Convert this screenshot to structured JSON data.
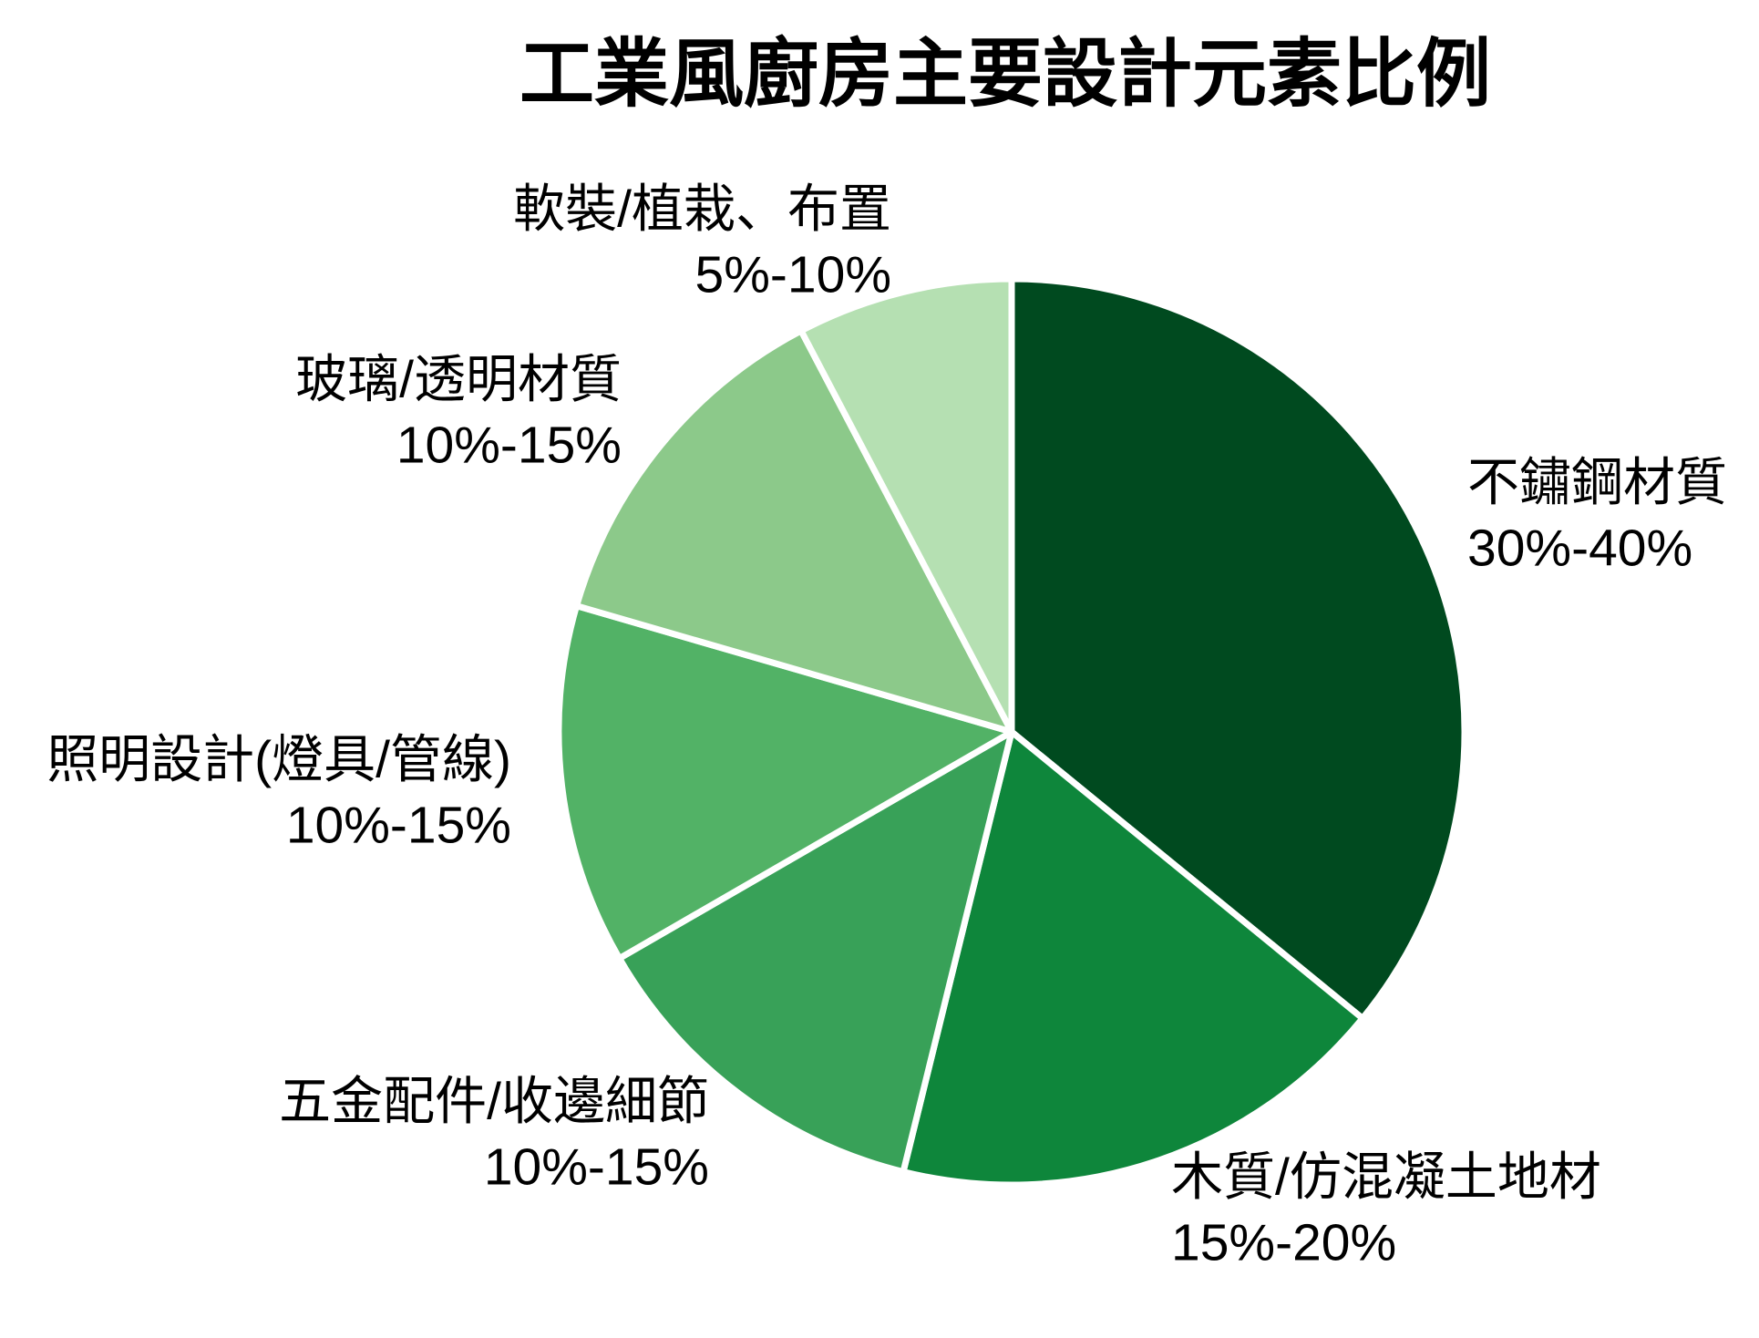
{
  "page": {
    "background": "#ffffff",
    "text_color": "#000000",
    "wedge_border_color": "#ffffff"
  },
  "chart_data": {
    "type": "pie",
    "title": "工業風廚房主要設計元素比例",
    "legend_position": "none",
    "start_angle_deg": 0,
    "direction": "clockwise",
    "labels_outside": true,
    "slices": [
      {
        "label": "不鏽鋼材質",
        "range": "30%-40%",
        "value": 35,
        "color": "#004a1f"
      },
      {
        "label": "木質/仿混凝土地材",
        "range": "15%-20%",
        "value": 17.5,
        "color": "#0e863b"
      },
      {
        "label": "五金配件/收邊細節",
        "range": "10%-15%",
        "value": 12.5,
        "color": "#38a158"
      },
      {
        "label": "照明設計(燈具/管線)",
        "range": "10%-15%",
        "value": 12.5,
        "color": "#52b266"
      },
      {
        "label": "玻璃/透明材質",
        "range": "10%-15%",
        "value": 12.5,
        "color": "#8cc98a"
      },
      {
        "label": "軟裝/植栽、布置",
        "range": "5%-10%",
        "value": 7.5,
        "color": "#b5e0b2"
      }
    ]
  }
}
